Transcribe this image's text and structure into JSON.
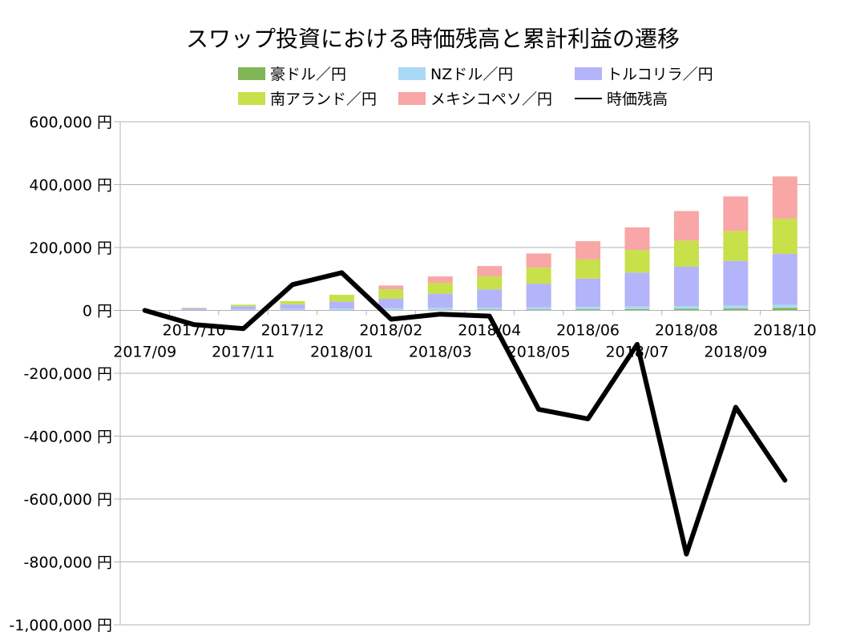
{
  "chart_data": {
    "type": "bar",
    "stacked": true,
    "title": "スワップ投資における時価残高と累計利益の遷移",
    "categories": [
      "2017/09",
      "2017/10",
      "2017/11",
      "2017/12",
      "2018/01",
      "2018/02",
      "2018/03",
      "2018/04",
      "2018/05",
      "2018/06",
      "2018/07",
      "2018/08",
      "2018/09",
      "2018/10"
    ],
    "ylim": [
      -1000000,
      600000
    ],
    "yticks": [
      600000,
      400000,
      200000,
      0,
      -200000,
      -400000,
      -600000,
      -800000,
      -1000000
    ],
    "ytick_labels": [
      "600,000 円",
      "400,000 円",
      "200,000 円",
      "0 円",
      "-200,000 円",
      "-400,000 円",
      "-600,000 円",
      "-800,000 円",
      "-1,000,000 円"
    ],
    "grid": true,
    "legend_position": "top",
    "series": [
      {
        "name": "豪ドル／円",
        "kind": "bar",
        "color": "#81b556",
        "values": [
          0,
          500,
          800,
          1000,
          1300,
          1600,
          2000,
          2500,
          3000,
          3600,
          4200,
          5000,
          6000,
          8000
        ]
      },
      {
        "name": "NZドル／円",
        "kind": "bar",
        "color": "#aad9f5",
        "values": [
          0,
          1500,
          2500,
          3500,
          4500,
          5500,
          6000,
          6500,
          7000,
          7500,
          8000,
          9000,
          9500,
          10000
        ]
      },
      {
        "name": "トルコリラ／円",
        "kind": "bar",
        "color": "#b4b4fa",
        "values": [
          0,
          5000,
          10000,
          15000,
          22000,
          30000,
          45000,
          58000,
          75000,
          90000,
          108000,
          125000,
          142000,
          162000
        ]
      },
      {
        "name": "南アランド／円",
        "kind": "bar",
        "color": "#c8e04a",
        "values": [
          0,
          1500,
          5000,
          10000,
          22000,
          30000,
          35000,
          42000,
          51000,
          61000,
          72000,
          83000,
          95000,
          112000
        ]
      },
      {
        "name": "メキシコペソ／円",
        "kind": "bar",
        "color": "#f8a6a6",
        "values": [
          0,
          0,
          0,
          0,
          0,
          12000,
          20000,
          32000,
          45000,
          58000,
          72000,
          94000,
          110000,
          134000
        ]
      },
      {
        "name": "時価残高",
        "kind": "line",
        "color": "#000000",
        "values": [
          0,
          -45000,
          -58000,
          82000,
          120000,
          -28000,
          -12000,
          -18000,
          -315000,
          -345000,
          -108000,
          -775000,
          -308000,
          -540000
        ]
      }
    ]
  }
}
